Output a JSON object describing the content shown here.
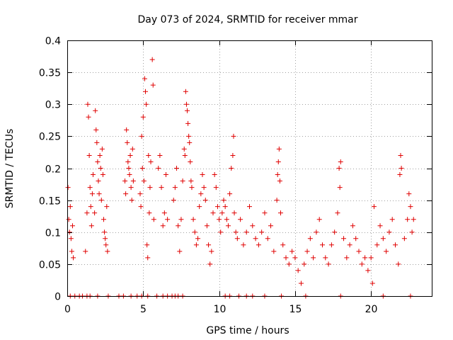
{
  "chart_data": {
    "type": "scatter",
    "title": "Day 073 of 2024, SRMTID for receiver mmar",
    "xlabel": "GPS time / hours",
    "ylabel": "SRMTID / TECUs",
    "xlim": [
      0,
      24
    ],
    "ylim": [
      0,
      0.4
    ],
    "xticks": [
      0,
      5,
      10,
      15,
      20
    ],
    "xtick_labels": [
      "0",
      "5",
      "10",
      "15",
      "20"
    ],
    "yticks": [
      0,
      0.05,
      0.1,
      0.15,
      0.2,
      0.25,
      0.3,
      0.35,
      0.4
    ],
    "ytick_labels": [
      "0",
      "0.05",
      "0.1",
      "0.15",
      "0.2",
      "0.25",
      "0.3",
      "0.35",
      "0.4"
    ],
    "grid": true,
    "marker": "+",
    "color": "#e00000",
    "series": [
      {
        "name": "SRMTID",
        "points": [
          [
            0.05,
            0.17
          ],
          [
            0.1,
            0.12
          ],
          [
            0.15,
            0.1
          ],
          [
            0.2,
            0.14
          ],
          [
            0.25,
            0.09
          ],
          [
            0.3,
            0.07
          ],
          [
            0.35,
            0.11
          ],
          [
            0.4,
            0.06
          ],
          [
            1.2,
            0.07
          ],
          [
            1.3,
            0.13
          ],
          [
            1.35,
            0.3
          ],
          [
            1.4,
            0.28
          ],
          [
            1.45,
            0.22
          ],
          [
            1.5,
            0.17
          ],
          [
            1.55,
            0.14
          ],
          [
            1.6,
            0.11
          ],
          [
            1.65,
            0.16
          ],
          [
            1.7,
            0.19
          ],
          [
            1.8,
            0.13
          ],
          [
            1.85,
            0.29
          ],
          [
            1.9,
            0.26
          ],
          [
            1.95,
            0.24
          ],
          [
            2.0,
            0.21
          ],
          [
            2.05,
            0.18
          ],
          [
            2.1,
            0.16
          ],
          [
            2.15,
            0.22
          ],
          [
            2.2,
            0.2
          ],
          [
            2.25,
            0.15
          ],
          [
            2.3,
            0.23
          ],
          [
            2.35,
            0.19
          ],
          [
            2.4,
            0.12
          ],
          [
            2.45,
            0.1
          ],
          [
            2.5,
            0.09
          ],
          [
            2.55,
            0.08
          ],
          [
            2.6,
            0.14
          ],
          [
            2.65,
            0.07
          ],
          [
            3.8,
            0.18
          ],
          [
            3.85,
            0.16
          ],
          [
            3.9,
            0.26
          ],
          [
            3.95,
            0.24
          ],
          [
            4.0,
            0.21
          ],
          [
            4.05,
            0.2
          ],
          [
            4.1,
            0.19
          ],
          [
            4.15,
            0.22
          ],
          [
            4.2,
            0.17
          ],
          [
            4.25,
            0.15
          ],
          [
            4.3,
            0.23
          ],
          [
            4.35,
            0.18
          ],
          [
            4.8,
            0.16
          ],
          [
            4.85,
            0.14
          ],
          [
            4.9,
            0.25
          ],
          [
            4.95,
            0.2
          ],
          [
            5.0,
            0.28
          ],
          [
            5.05,
            0.18
          ],
          [
            5.1,
            0.34
          ],
          [
            5.15,
            0.32
          ],
          [
            5.2,
            0.3
          ],
          [
            5.25,
            0.08
          ],
          [
            5.3,
            0.06
          ],
          [
            5.35,
            0.22
          ],
          [
            5.4,
            0.13
          ],
          [
            5.45,
            0.17
          ],
          [
            5.5,
            0.21
          ],
          [
            5.6,
            0.37
          ],
          [
            5.65,
            0.33
          ],
          [
            5.7,
            0.12
          ],
          [
            6.0,
            0.2
          ],
          [
            6.1,
            0.22
          ],
          [
            6.2,
            0.17
          ],
          [
            6.3,
            0.11
          ],
          [
            6.4,
            0.13
          ],
          [
            6.5,
            0.19
          ],
          [
            6.6,
            0.12
          ],
          [
            7.0,
            0.15
          ],
          [
            7.1,
            0.17
          ],
          [
            7.2,
            0.2
          ],
          [
            7.3,
            0.11
          ],
          [
            7.4,
            0.07
          ],
          [
            7.5,
            0.12
          ],
          [
            7.6,
            0.18
          ],
          [
            7.7,
            0.23
          ],
          [
            7.75,
            0.22
          ],
          [
            7.8,
            0.32
          ],
          [
            7.85,
            0.3
          ],
          [
            7.9,
            0.29
          ],
          [
            7.95,
            0.27
          ],
          [
            8.0,
            0.25
          ],
          [
            8.05,
            0.24
          ],
          [
            8.1,
            0.21
          ],
          [
            8.15,
            0.18
          ],
          [
            8.2,
            0.17
          ],
          [
            8.3,
            0.12
          ],
          [
            8.4,
            0.1
          ],
          [
            8.5,
            0.08
          ],
          [
            8.6,
            0.09
          ],
          [
            8.7,
            0.14
          ],
          [
            8.8,
            0.16
          ],
          [
            8.9,
            0.19
          ],
          [
            9.0,
            0.17
          ],
          [
            9.1,
            0.15
          ],
          [
            9.2,
            0.11
          ],
          [
            9.3,
            0.08
          ],
          [
            9.4,
            0.05
          ],
          [
            9.5,
            0.07
          ],
          [
            9.6,
            0.13
          ],
          [
            9.7,
            0.19
          ],
          [
            9.8,
            0.17
          ],
          [
            9.9,
            0.14
          ],
          [
            10.0,
            0.12
          ],
          [
            10.1,
            0.1
          ],
          [
            10.2,
            0.13
          ],
          [
            10.3,
            0.15
          ],
          [
            10.4,
            0.14
          ],
          [
            10.5,
            0.12
          ],
          [
            10.6,
            0.11
          ],
          [
            10.7,
            0.16
          ],
          [
            10.8,
            0.2
          ],
          [
            10.9,
            0.22
          ],
          [
            10.95,
            0.25
          ],
          [
            11.0,
            0.13
          ],
          [
            11.1,
            0.1
          ],
          [
            11.2,
            0.09
          ],
          [
            11.4,
            0.12
          ],
          [
            11.6,
            0.08
          ],
          [
            11.8,
            0.1
          ],
          [
            12.0,
            0.14
          ],
          [
            12.2,
            0.11
          ],
          [
            12.4,
            0.09
          ],
          [
            12.6,
            0.08
          ],
          [
            12.8,
            0.1
          ],
          [
            13.0,
            0.13
          ],
          [
            13.2,
            0.09
          ],
          [
            13.4,
            0.11
          ],
          [
            13.6,
            0.07
          ],
          [
            13.8,
            0.15
          ],
          [
            13.85,
            0.19
          ],
          [
            13.9,
            0.21
          ],
          [
            13.95,
            0.23
          ],
          [
            14.0,
            0.18
          ],
          [
            14.05,
            0.13
          ],
          [
            14.2,
            0.08
          ],
          [
            14.4,
            0.06
          ],
          [
            14.6,
            0.05
          ],
          [
            14.8,
            0.07
          ],
          [
            15.0,
            0.06
          ],
          [
            15.2,
            0.04
          ],
          [
            15.4,
            0.02
          ],
          [
            15.6,
            0.05
          ],
          [
            15.8,
            0.07
          ],
          [
            16.0,
            0.09
          ],
          [
            16.2,
            0.06
          ],
          [
            16.4,
            0.1
          ],
          [
            16.6,
            0.12
          ],
          [
            16.8,
            0.08
          ],
          [
            17.0,
            0.06
          ],
          [
            17.2,
            0.05
          ],
          [
            17.4,
            0.08
          ],
          [
            17.6,
            0.1
          ],
          [
            17.8,
            0.13
          ],
          [
            17.9,
            0.2
          ],
          [
            17.95,
            0.17
          ],
          [
            18.0,
            0.21
          ],
          [
            18.2,
            0.09
          ],
          [
            18.4,
            0.06
          ],
          [
            18.6,
            0.08
          ],
          [
            18.8,
            0.11
          ],
          [
            19.0,
            0.09
          ],
          [
            19.2,
            0.07
          ],
          [
            19.4,
            0.05
          ],
          [
            19.6,
            0.06
          ],
          [
            19.8,
            0.04
          ],
          [
            20.0,
            0.06
          ],
          [
            20.1,
            0.02
          ],
          [
            20.2,
            0.14
          ],
          [
            20.4,
            0.08
          ],
          [
            20.6,
            0.11
          ],
          [
            20.8,
            0.09
          ],
          [
            21.0,
            0.07
          ],
          [
            21.2,
            0.1
          ],
          [
            21.4,
            0.12
          ],
          [
            21.6,
            0.08
          ],
          [
            21.8,
            0.05
          ],
          [
            21.9,
            0.19
          ],
          [
            21.95,
            0.22
          ],
          [
            22.0,
            0.2
          ],
          [
            22.2,
            0.09
          ],
          [
            22.4,
            0.12
          ],
          [
            22.5,
            0.16
          ],
          [
            22.6,
            0.14
          ],
          [
            22.7,
            0.1
          ],
          [
            22.8,
            0.12
          ],
          [
            0.2,
            0.0
          ],
          [
            0.5,
            0.0
          ],
          [
            0.8,
            0.0
          ],
          [
            1.0,
            0.0
          ],
          [
            1.3,
            0.0
          ],
          [
            1.5,
            0.0
          ],
          [
            2.0,
            0.0
          ],
          [
            2.7,
            0.0
          ],
          [
            3.4,
            0.0
          ],
          [
            3.7,
            0.0
          ],
          [
            4.2,
            0.0
          ],
          [
            4.6,
            0.0
          ],
          [
            4.9,
            0.0
          ],
          [
            5.3,
            0.0
          ],
          [
            5.9,
            0.0
          ],
          [
            6.3,
            0.0
          ],
          [
            6.6,
            0.0
          ],
          [
            6.9,
            0.0
          ],
          [
            7.1,
            0.0
          ],
          [
            7.3,
            0.0
          ],
          [
            7.6,
            0.0
          ],
          [
            10.4,
            0.0
          ],
          [
            10.7,
            0.0
          ],
          [
            11.3,
            0.0
          ],
          [
            11.8,
            0.0
          ],
          [
            12.2,
            0.0
          ],
          [
            13.0,
            0.0
          ],
          [
            14.1,
            0.0
          ],
          [
            15.7,
            0.0
          ],
          [
            18.0,
            0.0
          ],
          [
            20.8,
            0.0
          ],
          [
            22.6,
            0.0
          ]
        ]
      }
    ]
  }
}
